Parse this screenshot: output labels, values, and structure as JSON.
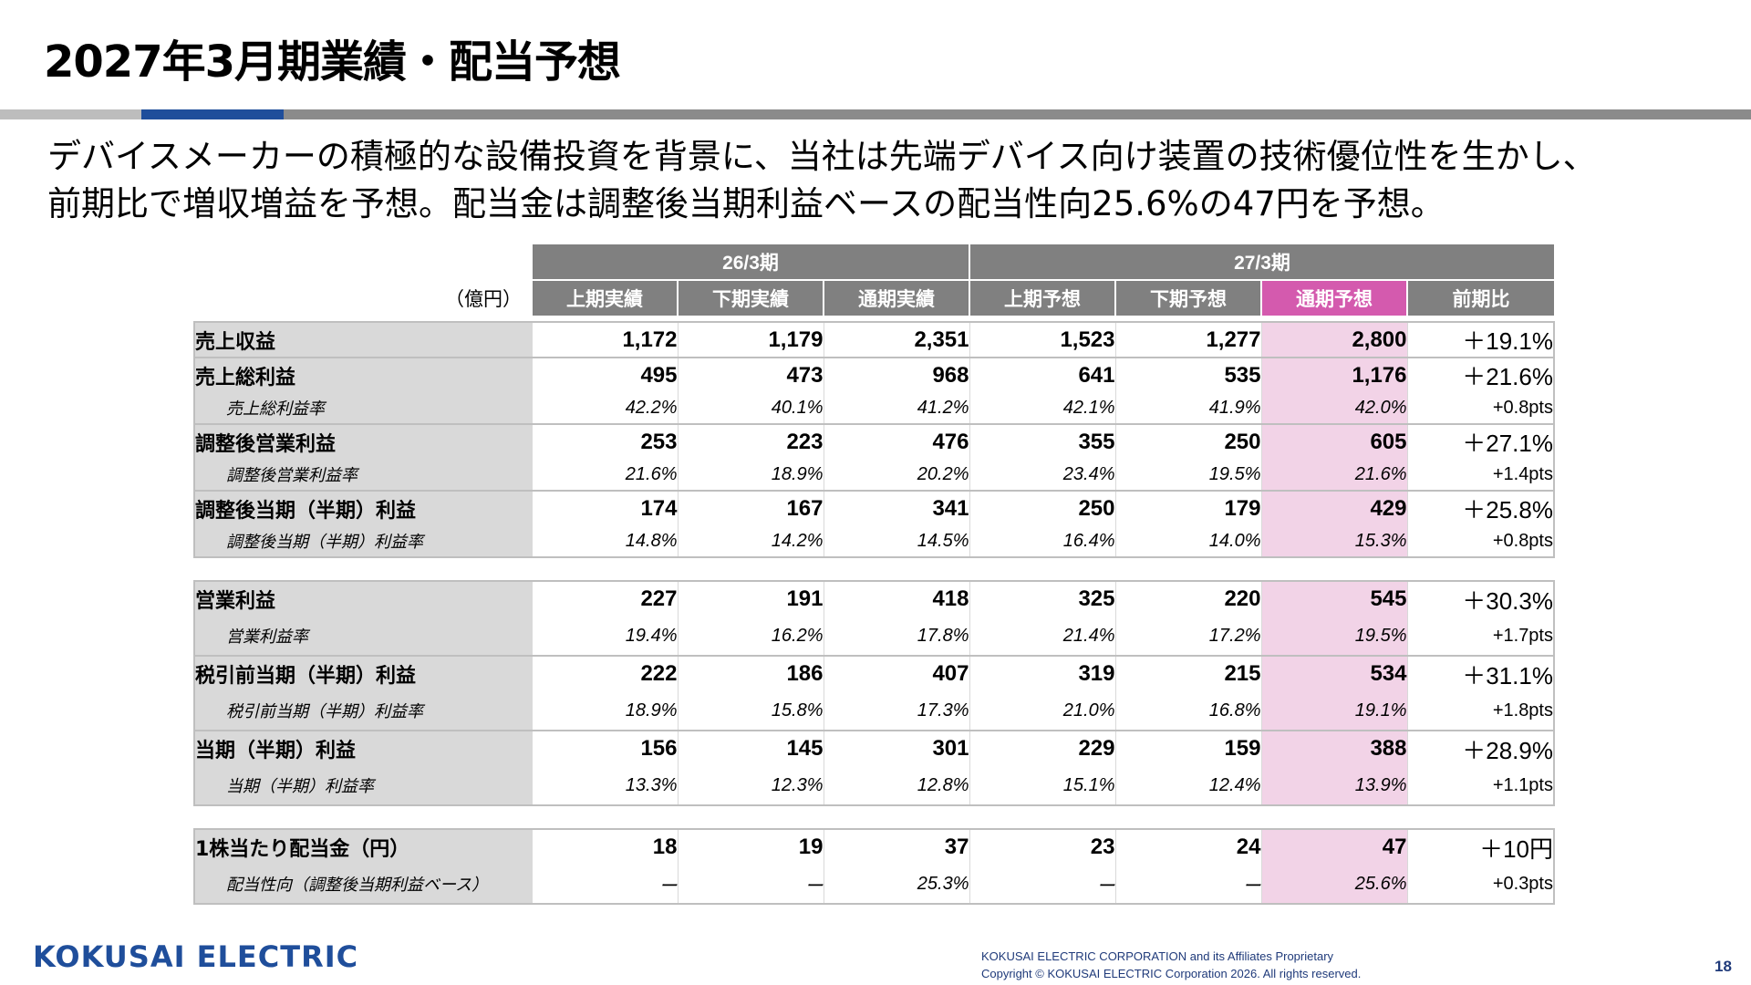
{
  "title": "2027年3月期業績・配当予想",
  "lead": [
    "デバイスメーカーの積極的な設備投資を背景に、当社は先端デバイス向け装置の技術優位性を生かし、",
    "前期比で増収増益を予想。配当金は調整後当期利益ベースの配当性向25.6%の47円を予想。"
  ],
  "table": {
    "unit": "（億円）",
    "periods": [
      "26/3期",
      "27/3期"
    ],
    "columns": [
      "上期実績",
      "下期実績",
      "通期実績",
      "上期予想",
      "下期予想",
      "通期予想",
      "前期比"
    ],
    "highlight_column": "通期予想",
    "groups": [
      [
        {
          "label": "売上収益",
          "values": [
            "1,172",
            "1,179",
            "2,351",
            "1,523",
            "1,277",
            "2,800",
            "＋19.1%"
          ]
        },
        {
          "label": "売上総利益",
          "values": [
            "495",
            "473",
            "968",
            "641",
            "535",
            "1,176",
            "＋21.6%"
          ]
        },
        {
          "label": "売上総利益率",
          "sub": true,
          "values": [
            "42.2%",
            "40.1%",
            "41.2%",
            "42.1%",
            "41.9%",
            "42.0%",
            "+0.8pts"
          ]
        },
        {
          "label": "調整後営業利益",
          "values": [
            "253",
            "223",
            "476",
            "355",
            "250",
            "605",
            "＋27.1%"
          ]
        },
        {
          "label": "調整後営業利益率",
          "sub": true,
          "values": [
            "21.6%",
            "18.9%",
            "20.2%",
            "23.4%",
            "19.5%",
            "21.6%",
            "+1.4pts"
          ]
        },
        {
          "label": "調整後当期（半期）利益",
          "values": [
            "174",
            "167",
            "341",
            "250",
            "179",
            "429",
            "＋25.8%"
          ]
        },
        {
          "label": "調整後当期（半期）利益率",
          "sub": true,
          "values": [
            "14.8%",
            "14.2%",
            "14.5%",
            "16.4%",
            "14.0%",
            "15.3%",
            "+0.8pts"
          ]
        }
      ],
      [
        {
          "label": "営業利益",
          "values": [
            "227",
            "191",
            "418",
            "325",
            "220",
            "545",
            "＋30.3%"
          ]
        },
        {
          "label": "営業利益率",
          "sub": true,
          "values": [
            "19.4%",
            "16.2%",
            "17.8%",
            "21.4%",
            "17.2%",
            "19.5%",
            "+1.7pts"
          ]
        },
        {
          "label": "税引前当期（半期）利益",
          "values": [
            "222",
            "186",
            "407",
            "319",
            "215",
            "534",
            "＋31.1%"
          ]
        },
        {
          "label": "税引前当期（半期）利益率",
          "sub": true,
          "values": [
            "18.9%",
            "15.8%",
            "17.3%",
            "21.0%",
            "16.8%",
            "19.1%",
            "+1.8pts"
          ]
        },
        {
          "label": "当期（半期）利益",
          "values": [
            "156",
            "145",
            "301",
            "229",
            "159",
            "388",
            "＋28.9%"
          ]
        },
        {
          "label": "当期（半期）利益率",
          "sub": true,
          "values": [
            "13.3%",
            "12.3%",
            "12.8%",
            "15.1%",
            "12.4%",
            "13.9%",
            "+1.1pts"
          ]
        }
      ],
      [
        {
          "label": "1株当たり配当金（円）",
          "values": [
            "18",
            "19",
            "37",
            "23",
            "24",
            "47",
            "＋10円"
          ]
        },
        {
          "label": "配当性向（調整後当期利益ベース）",
          "sub": true,
          "values": [
            "ー",
            "ー",
            "25.3%",
            "ー",
            "ー",
            "25.6%",
            "+0.3pts"
          ]
        }
      ]
    ]
  },
  "footer": {
    "brand": "KOKUSAI ELECTRIC",
    "note_line1": "KOKUSAI ELECTRIC CORPORATION and its Affiliates Proprietary",
    "note_line2": "Copyright © KOKUSAI ELECTRIC Corporation 2026. All rights reserved.",
    "page": "18"
  }
}
